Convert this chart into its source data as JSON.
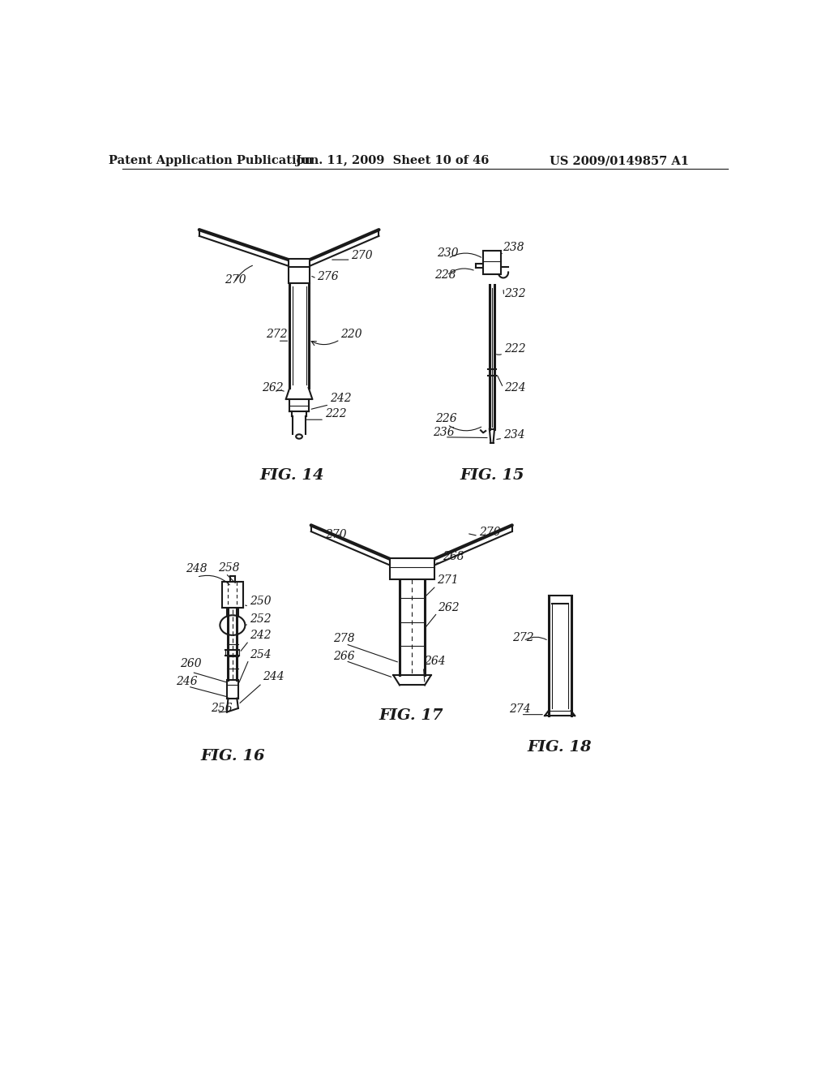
{
  "bg_color": "#ffffff",
  "line_color": "#1a1a1a",
  "header_left": "Patent Application Publication",
  "header_center": "Jun. 11, 2009  Sheet 10 of 46",
  "header_right": "US 2009/0149857 A1",
  "fig14_label": "FIG. 14",
  "fig15_label": "FIG. 15",
  "fig16_label": "FIG. 16",
  "fig17_label": "FIG. 17",
  "fig18_label": "FIG. 18"
}
